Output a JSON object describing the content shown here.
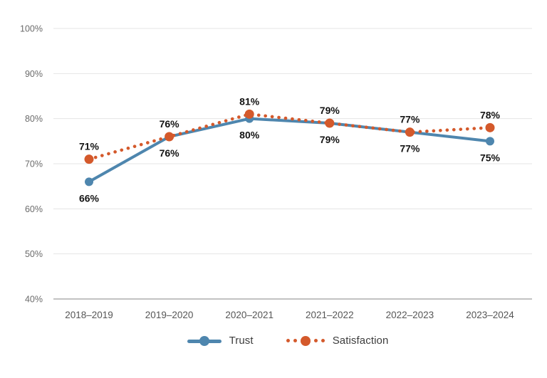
{
  "chart_data": {
    "type": "line",
    "title": "",
    "xlabel": "",
    "ylabel": "",
    "categories": [
      "2018–2019",
      "2019–2020",
      "2020–2021",
      "2021–2022",
      "2022–2023",
      "2023–2024"
    ],
    "series": [
      {
        "name": "Trust",
        "values": [
          66,
          76,
          80,
          79,
          77,
          75
        ],
        "color": "#4e86ae",
        "line_style": "solid",
        "marker": "circle",
        "data_label_position": "below"
      },
      {
        "name": "Satisfaction",
        "values": [
          71,
          76,
          81,
          79,
          77,
          78
        ],
        "color": "#d4592b",
        "line_style": "dotted",
        "marker": "circle",
        "data_label_position": "above"
      }
    ],
    "ylim": [
      40,
      100
    ],
    "ytick_step": 10,
    "ytick_labels": [
      "40%",
      "50%",
      "60%",
      "70%",
      "80%",
      "90%",
      "100%"
    ],
    "data_label_format": "{value}%",
    "grid": true,
    "legend_position": "bottom"
  },
  "colors": {
    "background": "#ffffff",
    "gridline": "#e4e4e4",
    "axis_line": "#c2c2c2",
    "ytick_text": "#6b6b6b",
    "xtick_text": "#565656",
    "data_label_text": "#141414",
    "legend_text": "#3d3d3d"
  }
}
